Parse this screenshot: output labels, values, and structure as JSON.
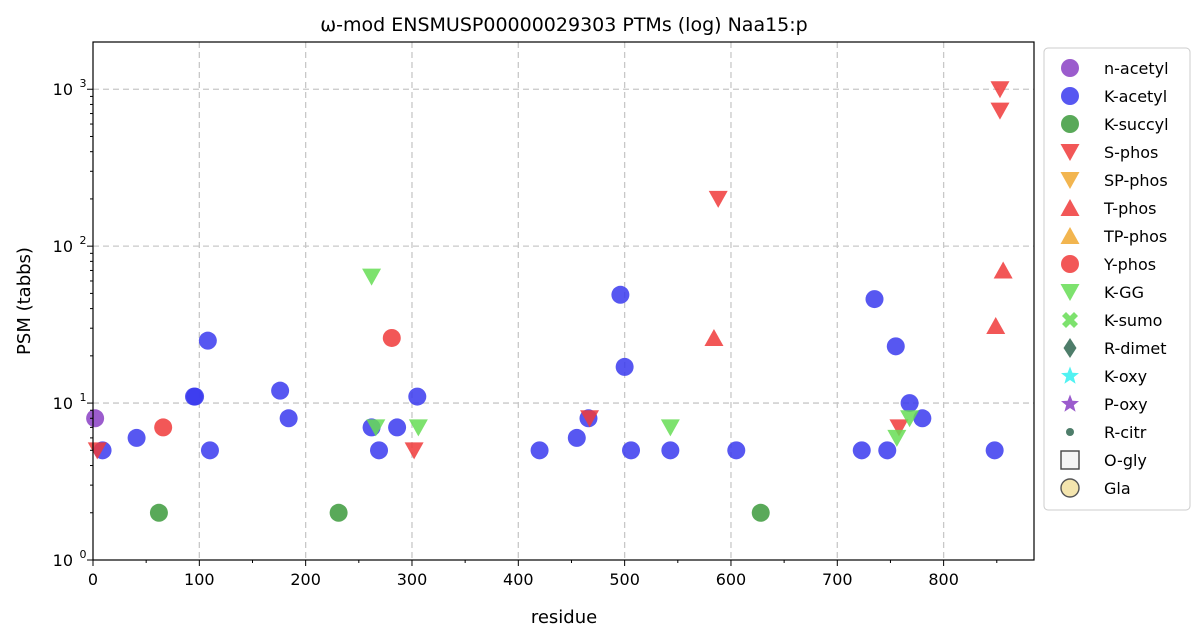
{
  "chart_data": {
    "type": "scatter",
    "title": "ω-mod ENSMUSP00000029303 PTMs (log) Naa15:p",
    "xlabel": "residue",
    "ylabel": "PSM (tabbs)",
    "xlim": [
      0,
      885
    ],
    "ylim": [
      1,
      2000
    ],
    "y_scale": "log",
    "grid": true,
    "legend_position": "outside-right",
    "x_ticks": [
      {
        "value": 0,
        "label": "0"
      },
      {
        "value": 100,
        "label": "100"
      },
      {
        "value": 200,
        "label": "200"
      },
      {
        "value": 300,
        "label": "300"
      },
      {
        "value": 400,
        "label": "400"
      },
      {
        "value": 500,
        "label": "500"
      },
      {
        "value": 600,
        "label": "600"
      },
      {
        "value": 700,
        "label": "700"
      },
      {
        "value": 800,
        "label": "800"
      }
    ],
    "y_ticks": [
      {
        "value": 1,
        "base": "10",
        "exp": "0"
      },
      {
        "value": 10,
        "base": "10",
        "exp": "1"
      },
      {
        "value": 100,
        "base": "10",
        "exp": "2"
      },
      {
        "value": 1000,
        "base": "10",
        "exp": "3"
      }
    ],
    "series": [
      {
        "name": "n-acetyl",
        "marker": "circle",
        "color": "#8a3fc4",
        "points": [
          [
            2,
            8
          ]
        ]
      },
      {
        "name": "K-acetyl",
        "marker": "circle",
        "color": "#3a3aee",
        "points": [
          [
            9,
            5
          ],
          [
            41,
            6
          ],
          [
            95,
            11
          ],
          [
            96,
            11
          ],
          [
            108,
            25
          ],
          [
            110,
            5
          ],
          [
            176,
            12
          ],
          [
            184,
            8
          ],
          [
            262,
            7
          ],
          [
            269,
            5
          ],
          [
            286,
            7
          ],
          [
            305,
            11
          ],
          [
            420,
            5
          ],
          [
            455,
            6
          ],
          [
            466,
            8
          ],
          [
            496,
            49
          ],
          [
            500,
            17
          ],
          [
            506,
            5
          ],
          [
            543,
            5
          ],
          [
            605,
            5
          ],
          [
            723,
            5
          ],
          [
            735,
            46
          ],
          [
            747,
            5
          ],
          [
            755,
            23
          ],
          [
            768,
            10
          ],
          [
            780,
            8
          ],
          [
            848,
            5
          ]
        ]
      },
      {
        "name": "K-succyl",
        "marker": "circle",
        "color": "#3c9a3c",
        "points": [
          [
            62,
            2
          ],
          [
            231,
            2
          ],
          [
            628,
            2
          ]
        ]
      },
      {
        "name": "S-phos",
        "marker": "triangle-down",
        "color": "#f03a3a",
        "points": [
          [
            4,
            5
          ],
          [
            302,
            5
          ],
          [
            467,
            8
          ],
          [
            588,
            200
          ],
          [
            758,
            7
          ],
          [
            853,
            1000
          ],
          [
            853,
            730
          ]
        ]
      },
      {
        "name": "SP-phos",
        "marker": "triangle-down",
        "color": "#f0a830",
        "points": []
      },
      {
        "name": "T-phos",
        "marker": "triangle-up",
        "color": "#f03a3a",
        "points": [
          [
            584,
            26
          ],
          [
            849,
            31
          ],
          [
            856,
            70
          ]
        ]
      },
      {
        "name": "TP-phos",
        "marker": "triangle-up",
        "color": "#f0a830",
        "points": []
      },
      {
        "name": "Y-phos",
        "marker": "circle",
        "color": "#f03a3a",
        "points": [
          [
            66,
            7
          ],
          [
            281,
            26
          ]
        ]
      },
      {
        "name": "K-GG",
        "marker": "triangle-down",
        "color": "#66dd55",
        "points": [
          [
            262,
            64
          ],
          [
            266,
            7
          ],
          [
            306,
            7
          ],
          [
            543,
            7
          ],
          [
            756,
            6
          ],
          [
            768,
            8
          ]
        ]
      },
      {
        "name": "K-sumo",
        "marker": "x",
        "color": "#66dd55",
        "points": []
      },
      {
        "name": "R-dimet",
        "marker": "diamond",
        "color": "#2f6650",
        "points": []
      },
      {
        "name": "K-oxy",
        "marker": "star",
        "color": "#33f0f0",
        "points": []
      },
      {
        "name": "P-oxy",
        "marker": "star",
        "color": "#8a3fc4",
        "points": []
      },
      {
        "name": "R-citr",
        "marker": "small-circle",
        "color": "#2f6650",
        "points": []
      },
      {
        "name": "O-gly",
        "marker": "square-open",
        "color": "#444444",
        "points": []
      },
      {
        "name": "Gla",
        "marker": "circle-open",
        "color": "#f2e0a0",
        "points": []
      }
    ]
  }
}
